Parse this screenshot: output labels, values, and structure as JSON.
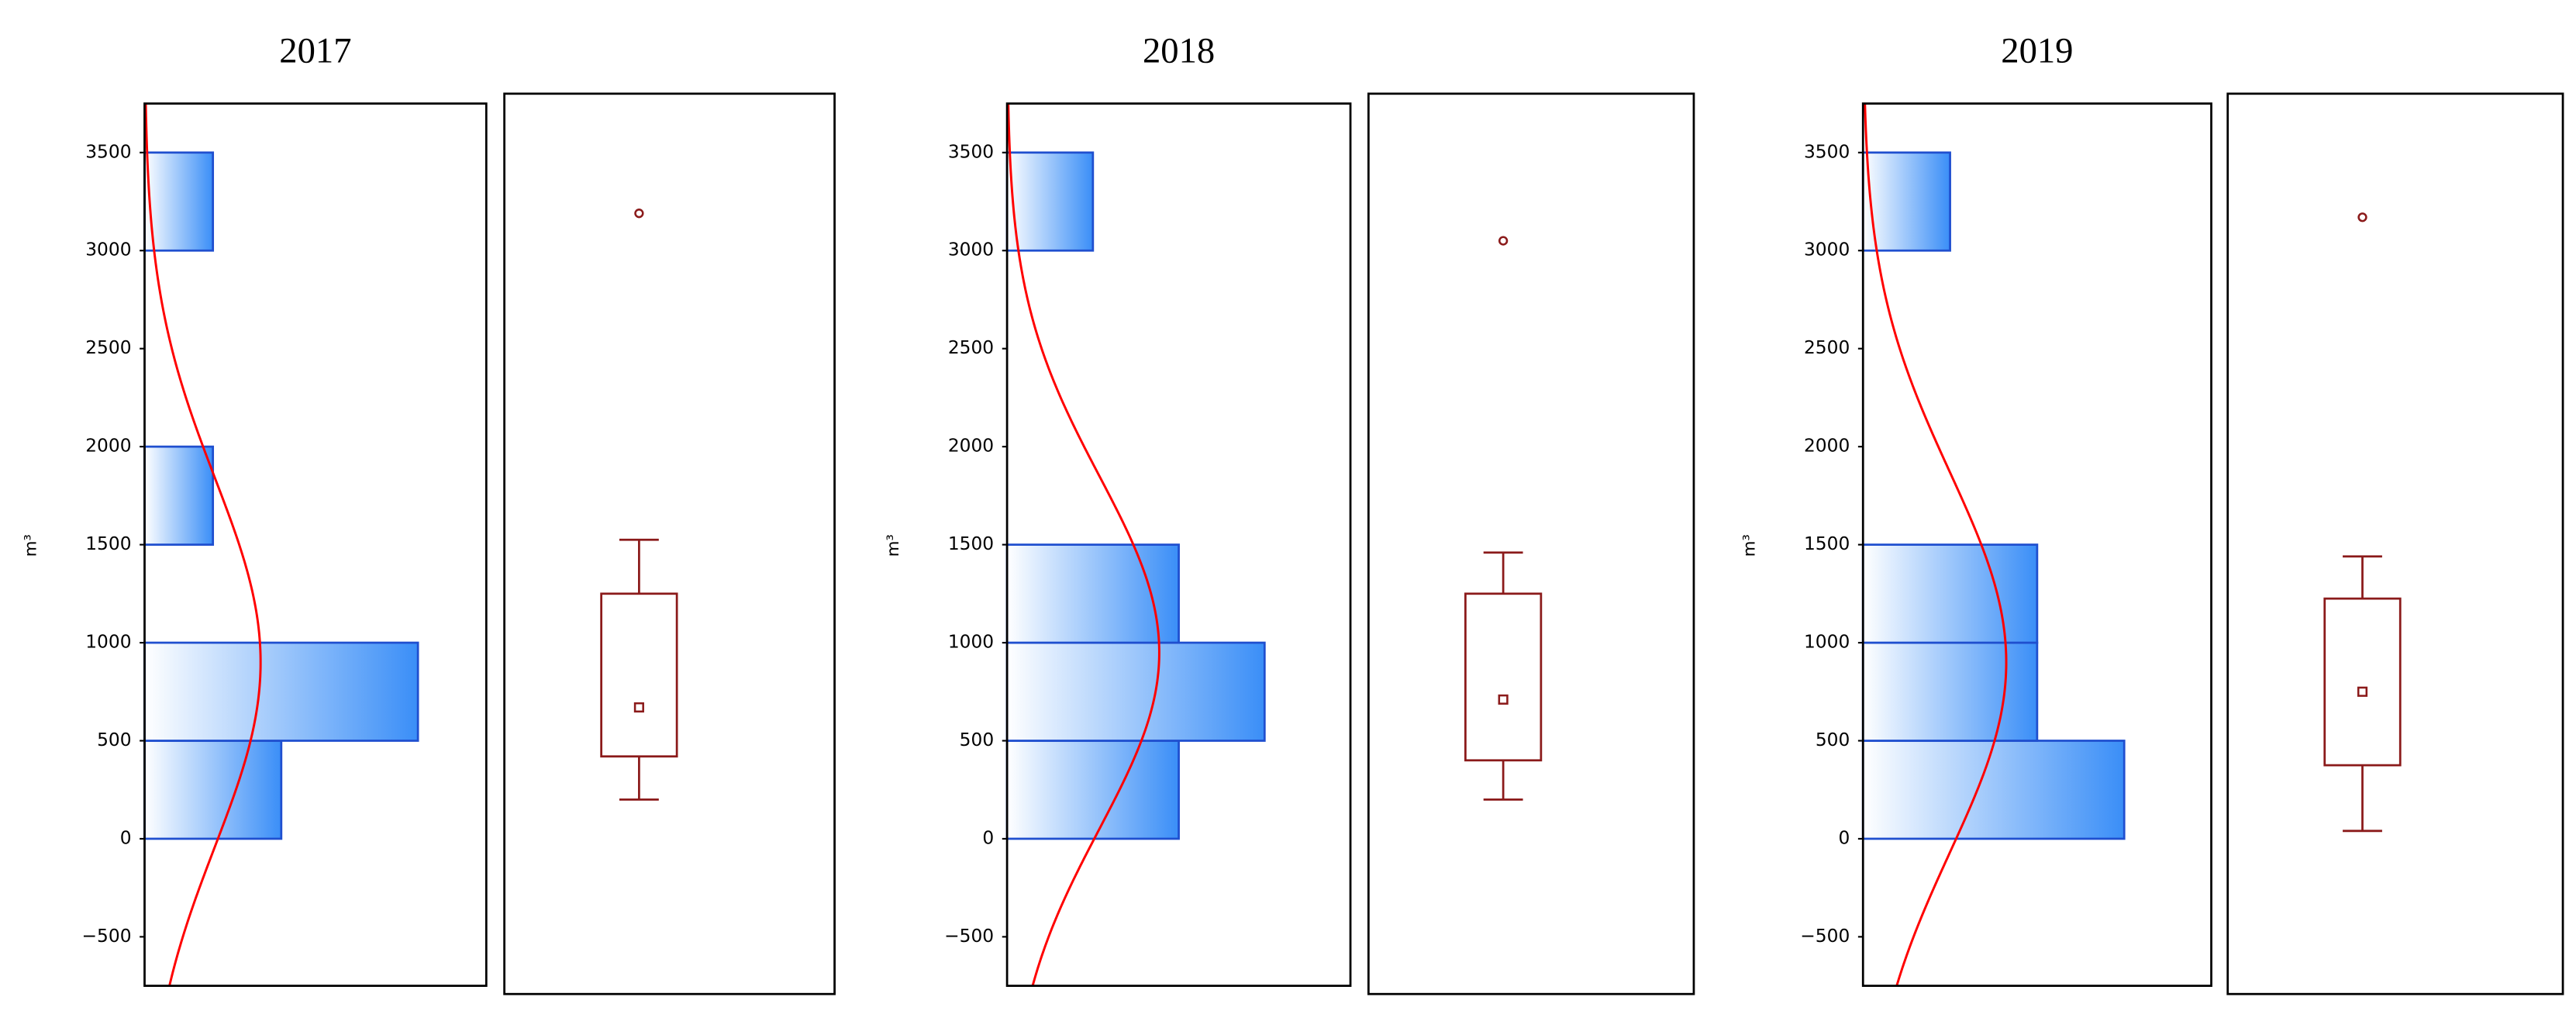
{
  "chart_data": [
    {
      "type": "histogram",
      "title": "2017",
      "y_label": "m³",
      "bins": [
        0,
        500,
        1000,
        1500,
        2000,
        2500,
        3000,
        3500
      ],
      "counts": [
        2,
        4,
        0,
        1,
        0,
        0,
        1
      ],
      "xlim": [
        0,
        5
      ],
      "ylim": [
        -750,
        3750
      ],
      "yticks": [
        {
          "value": -500,
          "label": "−500"
        },
        0,
        500,
        1000,
        1500,
        2000,
        2500,
        3000,
        3500
      ],
      "normal_fit": {
        "mean": 900,
        "sd": 940
      },
      "boxplot": {
        "whisker_low": 200,
        "q1": 420,
        "mean": 670,
        "q3": 1250,
        "whisker_high": 1525,
        "outliers": [
          3190
        ]
      },
      "bar_color": "#3a8ef7",
      "curve_color": "#ff0000",
      "box_color": "#8b1a1a"
    },
    {
      "type": "histogram",
      "title": "2018",
      "y_label": "m³",
      "bins": [
        0,
        500,
        1000,
        1500,
        2000,
        2500,
        3000,
        3500
      ],
      "counts": [
        2,
        3,
        2,
        0,
        0,
        0,
        1
      ],
      "xlim": [
        0,
        4
      ],
      "ylim": [
        -750,
        3750
      ],
      "yticks": [
        {
          "value": -500,
          "label": "−500"
        },
        0,
        500,
        1000,
        1500,
        2000,
        2500,
        3000,
        3500
      ],
      "normal_fit": {
        "mean": 950,
        "sd": 900
      },
      "boxplot": {
        "whisker_low": 200,
        "q1": 400,
        "mean": 710,
        "q3": 1250,
        "whisker_high": 1460,
        "outliers": [
          3050
        ]
      },
      "bar_color": "#3a8ef7",
      "curve_color": "#ff0000",
      "box_color": "#8b1a1a"
    },
    {
      "type": "histogram",
      "title": "2019",
      "y_label": "m³",
      "bins": [
        0,
        500,
        1000,
        1500,
        2000,
        2500,
        3000,
        3500
      ],
      "counts": [
        3,
        2,
        2,
        0,
        0,
        0,
        1
      ],
      "xlim": [
        0,
        4
      ],
      "ylim": [
        -750,
        3750
      ],
      "yticks": [
        {
          "value": -500,
          "label": "−500"
        },
        0,
        500,
        1000,
        1500,
        2000,
        2500,
        3000,
        3500
      ],
      "normal_fit": {
        "mean": 900,
        "sd": 970
      },
      "boxplot": {
        "whisker_low": 40,
        "q1": 375,
        "mean": 750,
        "q3": 1225,
        "whisker_high": 1440,
        "outliers": [
          3170
        ]
      },
      "bar_color": "#3a8ef7",
      "curve_color": "#ff0000",
      "box_color": "#8b1a1a"
    }
  ]
}
